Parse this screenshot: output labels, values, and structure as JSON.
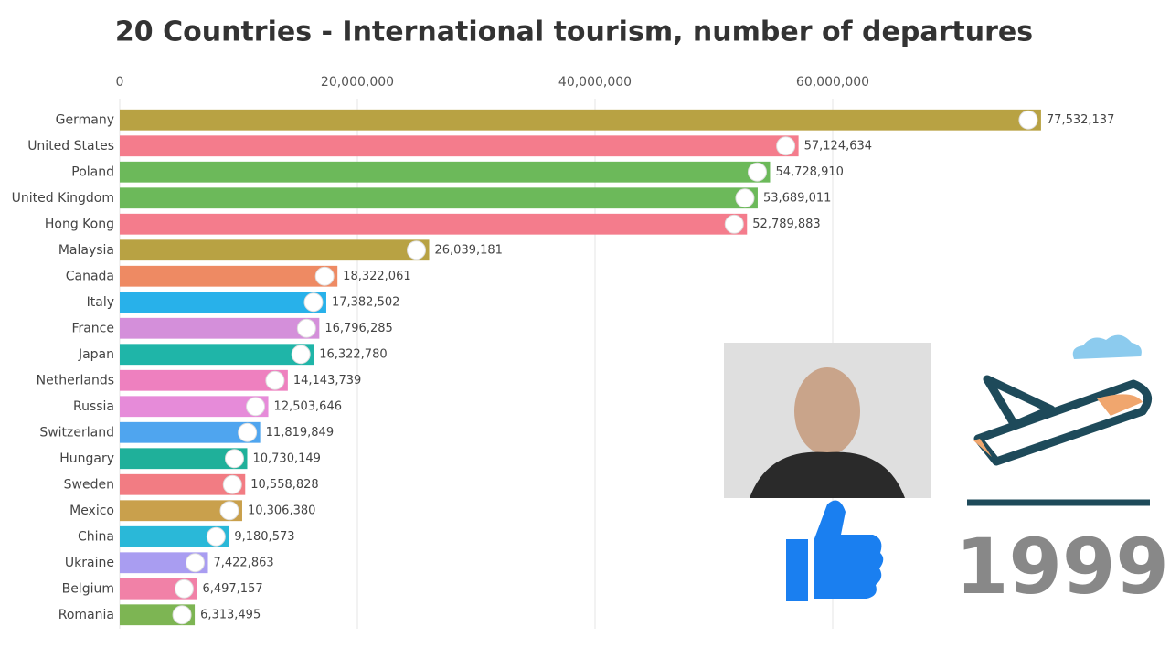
{
  "chart_data": {
    "type": "hbar",
    "title": "20 Countries - International tourism, number of departures",
    "categories": [
      "Germany",
      "United States",
      "Poland",
      "United Kingdom",
      "Hong Kong",
      "Malaysia",
      "Canada",
      "Italy",
      "France",
      "Japan",
      "Netherlands",
      "Russia",
      "Switzerland",
      "Hungary",
      "Sweden",
      "Mexico",
      "China",
      "Ukraine",
      "Belgium",
      "Romania"
    ],
    "values": [
      77532137,
      57124634,
      54728910,
      53689011,
      52789883,
      26039181,
      18322061,
      17382502,
      16796285,
      16322780,
      14143739,
      12503646,
      11819849,
      10730149,
      10558828,
      10306380,
      9180573,
      7422863,
      6497157,
      6313495
    ],
    "value_labels": [
      "77,532,137",
      "57,124,634",
      "54,728,910",
      "53,689,011",
      "52,789,883",
      "26,039,181",
      "18,322,061",
      "17,382,502",
      "16,796,285",
      "16,322,780",
      "14,143,739",
      "12,503,646",
      "11,819,849",
      "10,730,149",
      "10,558,828",
      "10,306,380",
      "9,180,573",
      "7,422,863",
      "6,497,157",
      "6,313,495"
    ],
    "colors": [
      "#b8a243",
      "#f47c8c",
      "#6cb95a",
      "#6cb95a",
      "#f47c8c",
      "#b8a243",
      "#ee8a63",
      "#28b1ea",
      "#d48fda",
      "#1fb5a8",
      "#ee80bf",
      "#e68bd9",
      "#4fa5ef",
      "#1fb09a",
      "#f27c83",
      "#c9a04c",
      "#2ab8d8",
      "#a99df1",
      "#f181a7",
      "#7db553"
    ],
    "xlim": [
      0,
      80000000
    ],
    "xticks": [
      0,
      {
        "value": 20000000,
        "label": "20,000,000"
      },
      {
        "value": 40000000,
        "label": "40,000,000"
      },
      {
        "value": 60000000,
        "label": "60,000,000"
      }
    ],
    "grid": true,
    "year": "1999"
  }
}
